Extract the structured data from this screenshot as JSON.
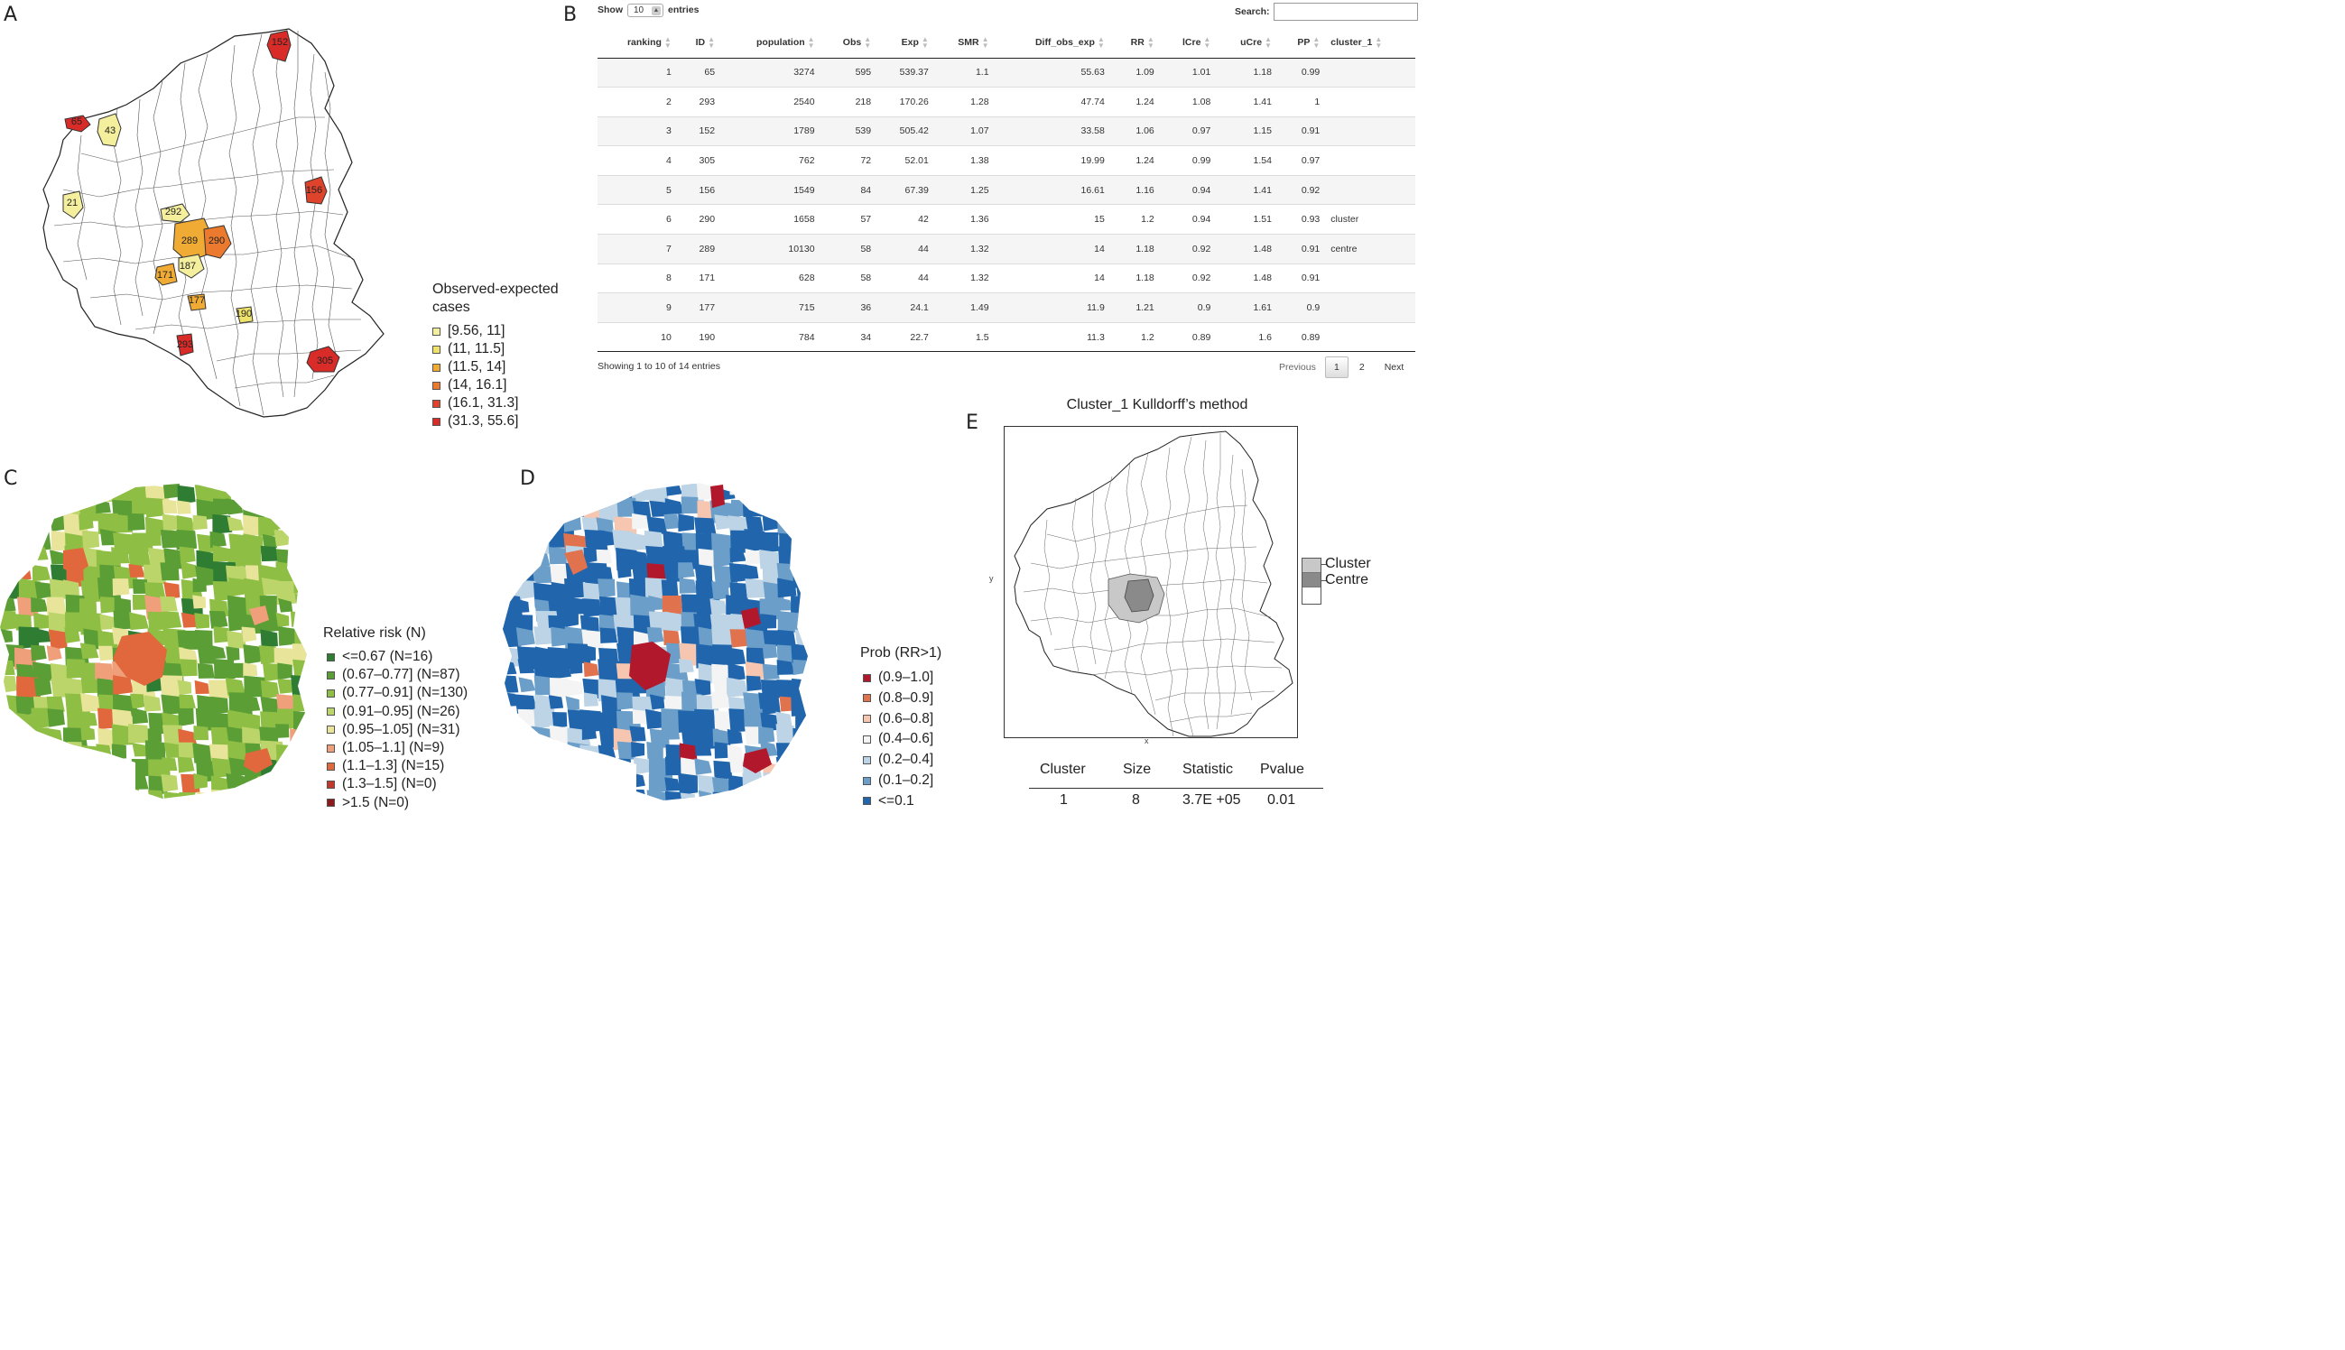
{
  "panels": {
    "a": "A",
    "b": "B",
    "c": "C",
    "d": "D",
    "e": "E"
  },
  "map_a": {
    "legend_title_1": "Observed-expected",
    "legend_title_2": "cases",
    "legend": [
      {
        "label": "[9.56, 11]",
        "color": "#f4ef9c"
      },
      {
        "label": "(11, 11.5]",
        "color": "#efe26a"
      },
      {
        "label": "(11.5, 14]",
        "color": "#efab33"
      },
      {
        "label": "(14, 16.1]",
        "color": "#ec7a2e"
      },
      {
        "label": "(16.1, 31.3]",
        "color": "#e0432b"
      },
      {
        "label": "(31.3, 55.6]",
        "color": "#d92b27"
      }
    ],
    "region_labels": [
      {
        "text": "152",
        "color": "#d92b27"
      },
      {
        "text": "65",
        "color": "#d92b27"
      },
      {
        "text": "43",
        "color": "#f4ef9c"
      },
      {
        "text": "156",
        "color": "#e0432b"
      },
      {
        "text": "21",
        "color": "#f4ef9c"
      },
      {
        "text": "292",
        "color": "#f4ef9c"
      },
      {
        "text": "289",
        "color": "#efab33"
      },
      {
        "text": "290",
        "color": "#ec7a2e"
      },
      {
        "text": "187",
        "color": "#f4ef9c"
      },
      {
        "text": "171",
        "color": "#efab33"
      },
      {
        "text": "177",
        "color": "#efab33"
      },
      {
        "text": "190",
        "color": "#efe26a"
      },
      {
        "text": "293",
        "color": "#d92b27"
      },
      {
        "text": "305",
        "color": "#d92b27"
      }
    ]
  },
  "table": {
    "show_label": "Show",
    "entries_label": "entries",
    "page_size": "10",
    "search_label": "Search:",
    "columns": [
      "ranking",
      "ID",
      "population",
      "Obs",
      "Exp",
      "SMR",
      "Diff_obs_exp",
      "RR",
      "lCre",
      "uCre",
      "PP",
      "cluster_1"
    ],
    "rows": [
      [
        "1",
        "65",
        "3274",
        "595",
        "539.37",
        "1.1",
        "55.63",
        "1.09",
        "1.01",
        "1.18",
        "0.99",
        ""
      ],
      [
        "2",
        "293",
        "2540",
        "218",
        "170.26",
        "1.28",
        "47.74",
        "1.24",
        "1.08",
        "1.41",
        "1",
        ""
      ],
      [
        "3",
        "152",
        "1789",
        "539",
        "505.42",
        "1.07",
        "33.58",
        "1.06",
        "0.97",
        "1.15",
        "0.91",
        ""
      ],
      [
        "4",
        "305",
        "762",
        "72",
        "52.01",
        "1.38",
        "19.99",
        "1.24",
        "0.99",
        "1.54",
        "0.97",
        ""
      ],
      [
        "5",
        "156",
        "1549",
        "84",
        "67.39",
        "1.25",
        "16.61",
        "1.16",
        "0.94",
        "1.41",
        "0.92",
        ""
      ],
      [
        "6",
        "290",
        "1658",
        "57",
        "42",
        "1.36",
        "15",
        "1.2",
        "0.94",
        "1.51",
        "0.93",
        "cluster"
      ],
      [
        "7",
        "289",
        "10130",
        "58",
        "44",
        "1.32",
        "14",
        "1.18",
        "0.92",
        "1.48",
        "0.91",
        "centre"
      ],
      [
        "8",
        "171",
        "628",
        "58",
        "44",
        "1.32",
        "14",
        "1.18",
        "0.92",
        "1.48",
        "0.91",
        ""
      ],
      [
        "9",
        "177",
        "715",
        "36",
        "24.1",
        "1.49",
        "11.9",
        "1.21",
        "0.9",
        "1.61",
        "0.9",
        ""
      ],
      [
        "10",
        "190",
        "784",
        "34",
        "22.7",
        "1.5",
        "11.3",
        "1.2",
        "0.89",
        "1.6",
        "0.89",
        ""
      ]
    ],
    "info": "Showing 1 to 10 of 14 entries",
    "pager": {
      "previous": "Previous",
      "page1": "1",
      "page2": "2",
      "next": "Next"
    }
  },
  "map_c": {
    "legend_title": "Relative risk (N)",
    "legend": [
      {
        "label": "<=0.67 (N=16)",
        "color": "#2e7d32"
      },
      {
        "label": "(0.67–0.77] (N=87)",
        "color": "#5a9e35"
      },
      {
        "label": "(0.77–0.91] (N=130)",
        "color": "#8fbe45"
      },
      {
        "label": "(0.91–0.95] (N=26)",
        "color": "#bcd56b"
      },
      {
        "label": "(0.95–1.05] (N=31)",
        "color": "#e8e59a"
      },
      {
        "label": "(1.05–1.1] (N=9)",
        "color": "#efa07a"
      },
      {
        "label": "(1.1–1.3] (N=15)",
        "color": "#e0683c"
      },
      {
        "label": "(1.3–1.5] (N=0)",
        "color": "#c0392b"
      },
      {
        "label": ">1.5 (N=0)",
        "color": "#8b1a1a"
      }
    ]
  },
  "map_d": {
    "legend_title": "Prob (RR>1)",
    "legend": [
      {
        "label": "(0.9–1.0]",
        "color": "#b2182b"
      },
      {
        "label": "(0.8–0.9]",
        "color": "#e0724e"
      },
      {
        "label": "(0.6–0.8]",
        "color": "#f7c6b0"
      },
      {
        "label": "(0.4–0.6]",
        "color": "#f4f4f4"
      },
      {
        "label": "(0.2–0.4]",
        "color": "#bcd4e6"
      },
      {
        "label": "(0.1–0.2]",
        "color": "#6b9ec8"
      },
      {
        "label": "<=0.1",
        "color": "#2166ac"
      }
    ]
  },
  "map_e": {
    "title": "Cluster_1 Kulldorff’s method",
    "y_label": "y",
    "x_label": "x",
    "legend": [
      {
        "label": "Cluster",
        "color": "#c8c8c8"
      },
      {
        "label": "Centre",
        "color": "#8a8a8a"
      }
    ],
    "stats_headers": [
      "Cluster",
      "Size",
      "Statistic",
      "Pvalue"
    ],
    "stats_values": [
      "1",
      "8",
      "3.7E +05",
      "0.01"
    ]
  }
}
